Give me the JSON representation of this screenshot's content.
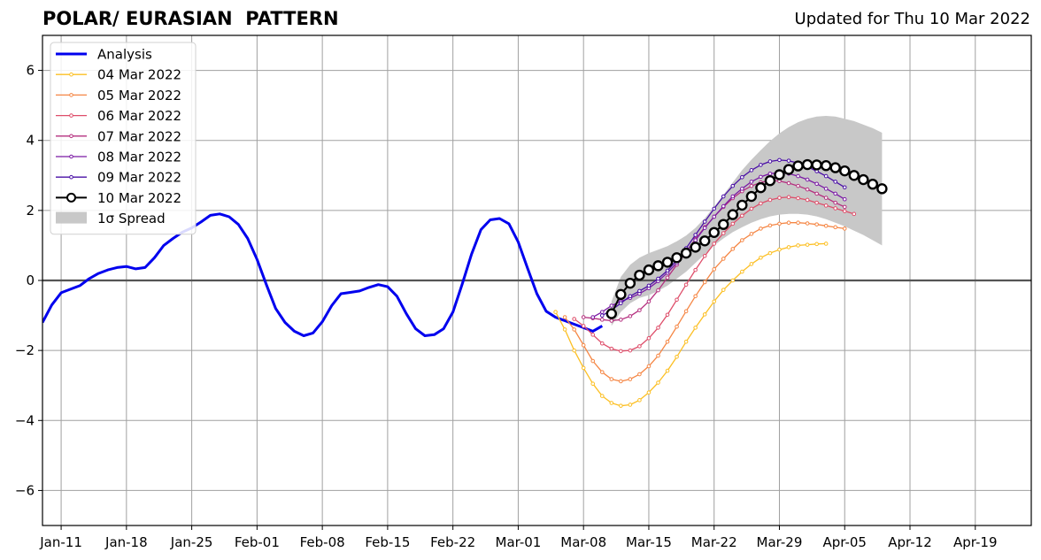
{
  "chart_data": {
    "type": "line",
    "title": "POLAR/ EURASIAN  PATTERN",
    "subtitle": "Updated for Thu 10 Mar 2022",
    "xlabel": "",
    "ylabel": "",
    "x_range": [
      "2022-01-09",
      "2022-04-25"
    ],
    "ylim": [
      -7,
      7
    ],
    "x_ticks": [
      {
        "date": "2022-01-11",
        "label": "Jan-11"
      },
      {
        "date": "2022-01-18",
        "label": "Jan-18"
      },
      {
        "date": "2022-01-25",
        "label": "Jan-25"
      },
      {
        "date": "2022-02-01",
        "label": "Feb-01"
      },
      {
        "date": "2022-02-08",
        "label": "Feb-08"
      },
      {
        "date": "2022-02-15",
        "label": "Feb-15"
      },
      {
        "date": "2022-02-22",
        "label": "Feb-22"
      },
      {
        "date": "2022-03-01",
        "label": "Mar-01"
      },
      {
        "date": "2022-03-08",
        "label": "Mar-08"
      },
      {
        "date": "2022-03-15",
        "label": "Mar-15"
      },
      {
        "date": "2022-03-22",
        "label": "Mar-22"
      },
      {
        "date": "2022-03-29",
        "label": "Mar-29"
      },
      {
        "date": "2022-04-05",
        "label": "Apr-05"
      },
      {
        "date": "2022-04-12",
        "label": "Apr-12"
      },
      {
        "date": "2022-04-19",
        "label": "Apr-19"
      }
    ],
    "y_ticks": [
      {
        "value": 6,
        "label": "6"
      },
      {
        "value": 4,
        "label": "4"
      },
      {
        "value": 2,
        "label": "2"
      },
      {
        "value": 0,
        "label": "0"
      },
      {
        "value": -2,
        "label": "−2"
      },
      {
        "value": -4,
        "label": "−4"
      },
      {
        "value": -6,
        "label": "−6"
      }
    ],
    "grid": true,
    "legend_position": "top-left",
    "series": [
      {
        "name": "Analysis",
        "color": "#0000ee",
        "style": "analysis",
        "start": "2022-01-09",
        "values": [
          -1.2,
          -0.7,
          -0.35,
          -0.25,
          -0.15,
          0.05,
          0.2,
          0.3,
          0.37,
          0.4,
          0.33,
          0.37,
          0.65,
          1.0,
          1.2,
          1.38,
          1.5,
          1.67,
          1.86,
          1.9,
          1.82,
          1.6,
          1.2,
          0.6,
          -0.12,
          -0.8,
          -1.2,
          -1.45,
          -1.58,
          -1.5,
          -1.18,
          -0.72,
          -0.38,
          -0.34,
          -0.3,
          -0.2,
          -0.12,
          -0.18,
          -0.45,
          -0.95,
          -1.38,
          -1.58,
          -1.55,
          -1.38,
          -0.9,
          -0.1,
          0.75,
          1.45,
          1.73,
          1.77,
          1.62,
          1.1,
          0.35,
          -0.38,
          -0.88,
          -1.05,
          -1.15,
          -1.25,
          -1.35,
          -1.45,
          -1.3
        ]
      },
      {
        "name": "04 Mar 2022",
        "color": "#fcbf23",
        "style": "forecast",
        "start": "2022-03-05",
        "values": [
          -0.9,
          -1.4,
          -2.0,
          -2.5,
          -2.95,
          -3.3,
          -3.5,
          -3.58,
          -3.55,
          -3.42,
          -3.2,
          -2.92,
          -2.58,
          -2.18,
          -1.75,
          -1.35,
          -0.97,
          -0.6,
          -0.27,
          0.0,
          0.25,
          0.47,
          0.65,
          0.78,
          0.88,
          0.95,
          1.0,
          1.02,
          1.04,
          1.05
        ]
      },
      {
        "name": "05 Mar 2022",
        "color": "#f58644",
        "style": "forecast",
        "start": "2022-03-06",
        "values": [
          -1.05,
          -1.4,
          -1.85,
          -2.3,
          -2.62,
          -2.82,
          -2.88,
          -2.82,
          -2.68,
          -2.45,
          -2.15,
          -1.75,
          -1.32,
          -0.88,
          -0.45,
          -0.05,
          0.32,
          0.62,
          0.9,
          1.15,
          1.33,
          1.48,
          1.57,
          1.62,
          1.65,
          1.65,
          1.63,
          1.6,
          1.56,
          1.52,
          1.48
        ]
      },
      {
        "name": "06 Mar 2022",
        "color": "#de4e6a",
        "style": "forecast",
        "start": "2022-03-07",
        "values": [
          -1.1,
          -1.3,
          -1.55,
          -1.8,
          -1.95,
          -2.02,
          -2.0,
          -1.88,
          -1.65,
          -1.35,
          -0.98,
          -0.55,
          -0.12,
          0.3,
          0.7,
          1.05,
          1.35,
          1.62,
          1.85,
          2.05,
          2.2,
          2.3,
          2.36,
          2.38,
          2.35,
          2.3,
          2.22,
          2.14,
          2.06,
          1.98,
          1.9
        ]
      },
      {
        "name": "07 Mar 2022",
        "color": "#b5307f",
        "style": "forecast",
        "start": "2022-03-08",
        "values": [
          -1.05,
          -1.08,
          -1.12,
          -1.15,
          -1.12,
          -1.02,
          -0.85,
          -0.6,
          -0.28,
          0.08,
          0.45,
          0.82,
          1.18,
          1.52,
          1.82,
          2.1,
          2.35,
          2.55,
          2.7,
          2.8,
          2.85,
          2.84,
          2.78,
          2.7,
          2.6,
          2.48,
          2.36,
          2.22,
          2.1
        ]
      },
      {
        "name": "08 Mar 2022",
        "color": "#7b1aa5",
        "style": "forecast",
        "start": "2022-03-09",
        "values": [
          -1.05,
          -0.9,
          -0.72,
          -0.6,
          -0.5,
          -0.38,
          -0.22,
          -0.02,
          0.22,
          0.5,
          0.82,
          1.15,
          1.5,
          1.82,
          2.12,
          2.4,
          2.62,
          2.82,
          2.96,
          3.05,
          3.08,
          3.05,
          2.98,
          2.88,
          2.76,
          2.62,
          2.48,
          2.32
        ]
      },
      {
        "name": "09 Mar 2022",
        "color": "#4a0fa6",
        "style": "forecast",
        "start": "2022-03-10",
        "values": [
          -1.0,
          -0.85,
          -0.65,
          -0.45,
          -0.3,
          -0.15,
          0.05,
          0.28,
          0.58,
          0.92,
          1.3,
          1.68,
          2.05,
          2.4,
          2.7,
          2.95,
          3.15,
          3.3,
          3.4,
          3.44,
          3.42,
          3.35,
          3.25,
          3.12,
          2.98,
          2.82,
          2.66
        ]
      },
      {
        "name": "10 Mar 2022",
        "color": "#000000",
        "style": "current",
        "start": "2022-03-11",
        "values": [
          -0.95,
          -0.4,
          -0.08,
          0.15,
          0.3,
          0.42,
          0.52,
          0.65,
          0.78,
          0.95,
          1.13,
          1.37,
          1.6,
          1.88,
          2.15,
          2.4,
          2.65,
          2.85,
          3.02,
          3.17,
          3.27,
          3.31,
          3.3,
          3.28,
          3.22,
          3.13,
          3.0,
          2.88,
          2.75,
          2.62
        ]
      },
      {
        "name": "1σ Spread",
        "color": "#c8c8c8",
        "style": "band",
        "start": "2022-03-11",
        "upper": [
          -0.6,
          0.1,
          0.45,
          0.65,
          0.78,
          0.88,
          0.98,
          1.12,
          1.28,
          1.5,
          1.78,
          2.1,
          2.45,
          2.8,
          3.15,
          3.45,
          3.72,
          3.98,
          4.2,
          4.38,
          4.52,
          4.62,
          4.68,
          4.7,
          4.68,
          4.62,
          4.55,
          4.45,
          4.35,
          4.22
        ],
        "lower": [
          -1.3,
          -0.9,
          -0.65,
          -0.5,
          -0.42,
          -0.3,
          -0.15,
          0.05,
          0.25,
          0.5,
          0.75,
          1.0,
          1.2,
          1.38,
          1.52,
          1.65,
          1.75,
          1.83,
          1.88,
          1.9,
          1.9,
          1.88,
          1.83,
          1.75,
          1.65,
          1.55,
          1.42,
          1.3,
          1.15,
          1.0
        ]
      }
    ]
  }
}
